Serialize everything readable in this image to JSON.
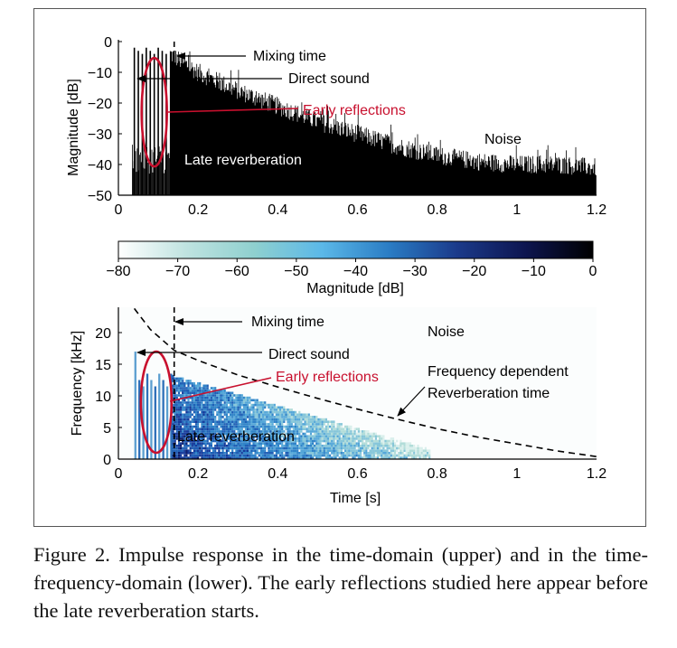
{
  "figure": {
    "caption": "Figure 2. Impulse response in the time-domain (upper) and in the time-frequency-domain (lower). The early reflections studied here appear before the late reverberation starts."
  },
  "chart_data": [
    {
      "type": "area",
      "panel": "upper",
      "xlabel": "",
      "ylabel": "Magnitude [dB]",
      "xlim": [
        0,
        1.2
      ],
      "ylim": [
        -50,
        0
      ],
      "x_ticks": [
        "0",
        "0.2",
        "0.4",
        "0.6",
        "0.8",
        "1",
        "1.2"
      ],
      "y_ticks": [
        "0",
        "−10",
        "−20",
        "−30",
        "−40",
        "−50"
      ],
      "series": [
        {
          "envelope_x": [
            0,
            0.04,
            0.08,
            0.13,
            0.2,
            0.3,
            0.4,
            0.5,
            0.6,
            0.7,
            0.8,
            0.9,
            1.0,
            1.1,
            1.2
          ],
          "envelope_y": [
            -50,
            -2,
            -3,
            -4,
            -10,
            -16,
            -21,
            -26,
            -30,
            -34,
            -37,
            -39,
            -40,
            -40,
            -41
          ]
        }
      ],
      "direct_sound": {
        "x": 0.04,
        "y": -2
      },
      "early_reflections_x": [
        0.04,
        0.05,
        0.06,
        0.07,
        0.08,
        0.09,
        0.1,
        0.11,
        0.12
      ],
      "mixing_time_x": 0.14,
      "annotations": {
        "mixing_time": "Mixing time",
        "direct_sound": "Direct sound",
        "early_reflections": "Early reflections",
        "late_reverberation": "Late reverberation",
        "noise": "Noise"
      }
    },
    {
      "type": "heatmap",
      "panel": "lower",
      "xlabel": "Time [s]",
      "ylabel": "Frequency [kHz]",
      "xlim": [
        0,
        1.2
      ],
      "ylim": [
        0,
        24
      ],
      "x_ticks": [
        "0",
        "0.2",
        "0.4",
        "0.6",
        "0.8",
        "1",
        "1.2"
      ],
      "y_ticks": [
        "0",
        "5",
        "10",
        "15",
        "20"
      ],
      "colorbar": {
        "label": "Magnitude [dB]",
        "range": [
          -80,
          0
        ],
        "ticks": [
          "−80",
          "−70",
          "−60",
          "−50",
          "−40",
          "−30",
          "−20",
          "−10",
          "0"
        ],
        "colors": [
          "#ffffff",
          "#bfe3e0",
          "#8fd0cf",
          "#5bb8e8",
          "#2a7cc4",
          "#1b3a8a",
          "#0d1550",
          "#000000"
        ]
      },
      "reverberation_time_curve": {
        "x": [
          0.04,
          0.08,
          0.14,
          0.2,
          0.3,
          0.4,
          0.5,
          0.6,
          0.7,
          0.8,
          0.9,
          1.0,
          1.1,
          1.2
        ],
        "y": [
          23.8,
          20.5,
          17.2,
          15.6,
          13.3,
          11.4,
          9.6,
          7.9,
          6.3,
          4.8,
          3.5,
          2.4,
          1.3,
          0.4
        ]
      },
      "mixing_time_x": 0.14,
      "annotations": {
        "mixing_time": "Mixing time",
        "noise": "Noise",
        "direct_sound": "Direct sound",
        "early_reflections": "Early reflections",
        "freq_dependent": "Frequency dependent",
        "reverb_time": "Reverberation time",
        "late_reverberation": "Late reverberation"
      }
    }
  ]
}
